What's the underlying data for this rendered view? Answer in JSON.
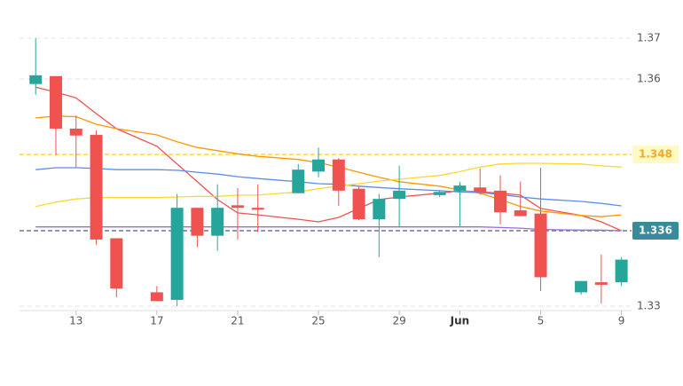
{
  "chart_data": {
    "type": "candlestick",
    "x": [
      0,
      1,
      2,
      3,
      4,
      6,
      7,
      8,
      9,
      10,
      11,
      13,
      14,
      15,
      16,
      17,
      18,
      20,
      21,
      22,
      23,
      24,
      25,
      27,
      28,
      29
    ],
    "xlim": [
      -0.8,
      29.5
    ],
    "xticks": [
      {
        "value": 2,
        "label": "13"
      },
      {
        "value": 6,
        "label": "17"
      },
      {
        "value": 10,
        "label": "21"
      },
      {
        "value": 14,
        "label": "25"
      },
      {
        "value": 18,
        "label": "29"
      },
      {
        "value": 21,
        "label": "Jun"
      },
      {
        "value": 25,
        "label": "5"
      },
      {
        "value": 29,
        "label": "9"
      }
    ],
    "ylim": [
      1.33,
      1.375
    ],
    "yticks": [
      1.33,
      1.36,
      1.37
    ],
    "grid": true,
    "up_color": "#26a69a",
    "down_color": "#ef5350",
    "open": [
      1.3592,
      1.3607,
      1.3521,
      1.3511,
      1.3354,
      1.3311,
      1.3305,
      1.3396,
      1.3356,
      1.34,
      1.3396,
      1.3419,
      1.3453,
      1.3472,
      1.3426,
      1.3378,
      1.341,
      1.3416,
      1.3423,
      1.3428,
      1.3423,
      1.3392,
      1.3387,
      1.3311,
      1.3319,
      1.3319
    ],
    "high": [
      1.37,
      1.3607,
      1.3542,
      1.3518,
      1.3354,
      1.3316,
      1.3418,
      1.3396,
      1.3433,
      1.3427,
      1.3433,
      1.3465,
      1.3491,
      1.3474,
      1.343,
      1.3418,
      1.3462,
      1.3424,
      1.3437,
      1.3458,
      1.3447,
      1.3437,
      1.3459,
      1.332,
      1.3341,
      1.3339
    ],
    "low": [
      1.3575,
      1.3479,
      1.346,
      1.3349,
      1.3307,
      1.3304,
      1.33,
      1.3347,
      1.3344,
      1.3353,
      1.3359,
      1.3419,
      1.3444,
      1.3399,
      1.3377,
      1.3339,
      1.3367,
      1.3413,
      1.3367,
      1.3417,
      1.337,
      1.3383,
      1.3312,
      1.3309,
      1.3302,
      1.3316
    ],
    "close": [
      1.3609,
      1.3521,
      1.351,
      1.3353,
      1.3314,
      1.3304,
      1.3396,
      1.3356,
      1.3396,
      1.3396,
      1.3393,
      1.3456,
      1.3472,
      1.3423,
      1.3378,
      1.341,
      1.3423,
      1.3421,
      1.3431,
      1.3421,
      1.3389,
      1.3383,
      1.3323,
      1.332,
      1.3317,
      1.3337
    ],
    "lines": [
      {
        "color": "#ef5350",
        "values": [
          1.3587,
          1.3579,
          1.357,
          1.3545,
          1.3521,
          1.3493,
          1.3465,
          1.3437,
          1.3409,
          1.3388,
          1.3385,
          1.3378,
          1.3374,
          1.3381,
          1.3395,
          1.3409,
          1.3413,
          1.3419,
          1.3423,
          1.3421,
          1.3419,
          1.3416,
          1.3395,
          1.3384,
          1.3374,
          1.336
        ]
      },
      {
        "color": "#ff9800",
        "values": [
          1.3538,
          1.3541,
          1.354,
          1.3528,
          1.3521,
          1.3511,
          1.35,
          1.3491,
          1.3486,
          1.3481,
          1.3477,
          1.3472,
          1.3467,
          1.346,
          1.3452,
          1.3444,
          1.3437,
          1.343,
          1.3424,
          1.3419,
          1.3409,
          1.3398,
          1.3391,
          1.3384,
          1.3382,
          1.3385
        ]
      },
      {
        "color": "#5b8def",
        "values": [
          1.3456,
          1.3459,
          1.3459,
          1.3458,
          1.3456,
          1.3456,
          1.3455,
          1.3452,
          1.3449,
          1.3445,
          1.3442,
          1.3437,
          1.3434,
          1.3433,
          1.343,
          1.3428,
          1.3426,
          1.3423,
          1.3421,
          1.342,
          1.3417,
          1.3413,
          1.341,
          1.3406,
          1.3403,
          1.3399
        ]
      },
      {
        "color": "#fdd835",
        "values": [
          1.3398,
          1.3405,
          1.341,
          1.3412,
          1.3412,
          1.3412,
          1.3413,
          1.3414,
          1.3414,
          1.3416,
          1.3416,
          1.3421,
          1.3426,
          1.343,
          1.3434,
          1.3438,
          1.3441,
          1.3447,
          1.3453,
          1.346,
          1.3465,
          1.3466,
          1.3466,
          1.3465,
          1.3462,
          1.346
        ]
      },
      {
        "color": "#9c6ade",
        "values": [
          1.3366,
          1.3366,
          1.3366,
          1.3366,
          1.3366,
          1.3366,
          1.3366,
          1.3366,
          1.3366,
          1.3366,
          1.3366,
          1.3366,
          1.3366,
          1.3366,
          1.3366,
          1.3366,
          1.3366,
          1.3366,
          1.3366,
          1.3366,
          1.3365,
          1.3364,
          1.3362,
          1.3361,
          1.3361,
          1.336
        ]
      }
    ],
    "price_lines": [
      {
        "value": 1.348,
        "color": "#fdd835",
        "label_color": "#f9a825",
        "label_background": "#fff9c4"
      },
      {
        "value": 1.336,
        "color": "#6b7c93",
        "label_color": "#ffffff",
        "label_background": "#3b8a9a"
      }
    ]
  }
}
